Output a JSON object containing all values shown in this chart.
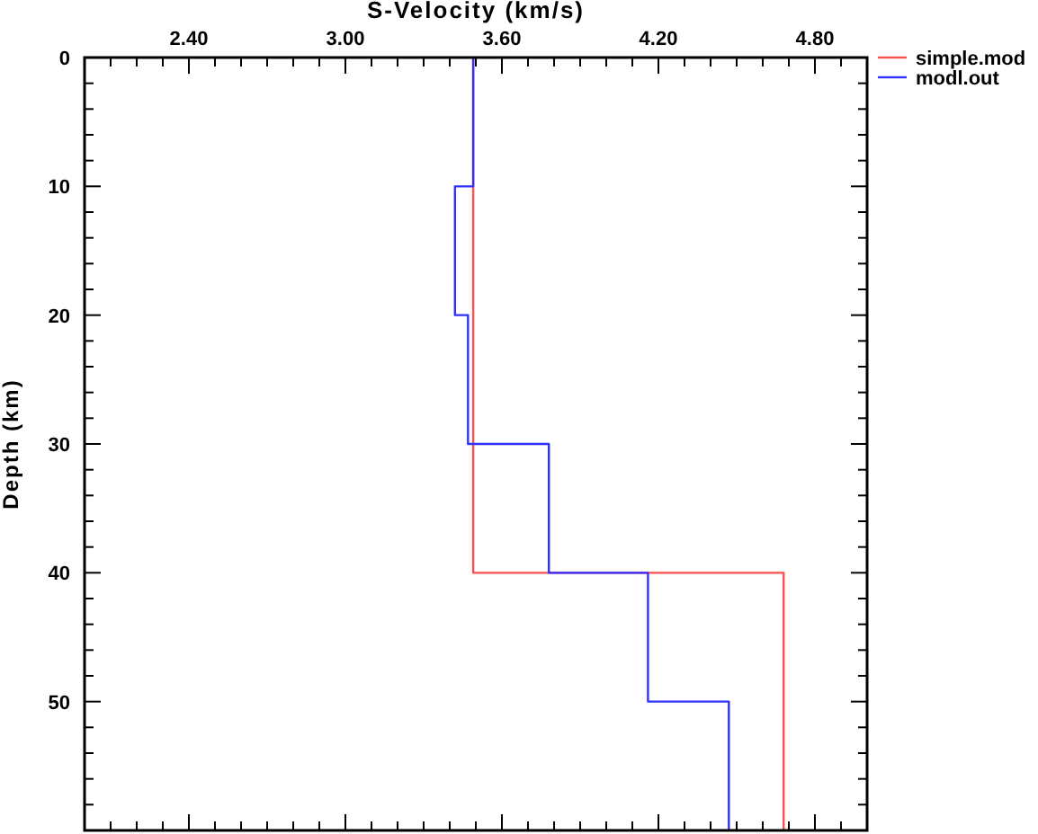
{
  "chart_data": {
    "type": "line",
    "xlabel": "S-Velocity (km/s)",
    "ylabel": "Depth (km)",
    "xlim": [
      2.0,
      5.0
    ],
    "ylim": [
      60,
      0
    ],
    "xticks": [
      {
        "value": 2.0,
        "label": null
      },
      {
        "value": 2.1,
        "label": null
      },
      {
        "value": 2.2,
        "label": null
      },
      {
        "value": 2.3,
        "label": null
      },
      {
        "value": 2.4,
        "label": "2.40"
      },
      {
        "value": 2.5,
        "label": null
      },
      {
        "value": 2.6,
        "label": null
      },
      {
        "value": 2.7,
        "label": null
      },
      {
        "value": 2.8,
        "label": null
      },
      {
        "value": 2.9,
        "label": null
      },
      {
        "value": 3.0,
        "label": "3.00"
      },
      {
        "value": 3.1,
        "label": null
      },
      {
        "value": 3.2,
        "label": null
      },
      {
        "value": 3.3,
        "label": null
      },
      {
        "value": 3.4,
        "label": null
      },
      {
        "value": 3.5,
        "label": null
      },
      {
        "value": 3.6,
        "label": "3.60"
      },
      {
        "value": 3.7,
        "label": null
      },
      {
        "value": 3.8,
        "label": null
      },
      {
        "value": 3.9,
        "label": null
      },
      {
        "value": 4.0,
        "label": null
      },
      {
        "value": 4.1,
        "label": null
      },
      {
        "value": 4.2,
        "label": "4.20"
      },
      {
        "value": 4.3,
        "label": null
      },
      {
        "value": 4.4,
        "label": null
      },
      {
        "value": 4.5,
        "label": null
      },
      {
        "value": 4.6,
        "label": null
      },
      {
        "value": 4.7,
        "label": null
      },
      {
        "value": 4.8,
        "label": "4.80"
      },
      {
        "value": 4.9,
        "label": null
      },
      {
        "value": 5.0,
        "label": null
      }
    ],
    "yticks": [
      0,
      {
        "value": 2,
        "label": null
      },
      {
        "value": 4,
        "label": null
      },
      {
        "value": 6,
        "label": null
      },
      {
        "value": 8,
        "label": null
      },
      10,
      {
        "value": 12,
        "label": null
      },
      {
        "value": 14,
        "label": null
      },
      {
        "value": 16,
        "label": null
      },
      {
        "value": 18,
        "label": null
      },
      20,
      {
        "value": 22,
        "label": null
      },
      {
        "value": 24,
        "label": null
      },
      {
        "value": 26,
        "label": null
      },
      {
        "value": 28,
        "label": null
      },
      30,
      {
        "value": 32,
        "label": null
      },
      {
        "value": 34,
        "label": null
      },
      {
        "value": 36,
        "label": null
      },
      {
        "value": 38,
        "label": null
      },
      40,
      {
        "value": 42,
        "label": null
      },
      {
        "value": 44,
        "label": null
      },
      {
        "value": 46,
        "label": null
      },
      {
        "value": 48,
        "label": null
      },
      50,
      {
        "value": 52,
        "label": null
      },
      {
        "value": 54,
        "label": null
      },
      {
        "value": 56,
        "label": null
      },
      {
        "value": 58,
        "label": null
      },
      {
        "value": 60,
        "label": null
      }
    ],
    "grid": false,
    "legend": "top right",
    "marker": "none",
    "line_style": "solid",
    "series": [
      {
        "name": "simple.mod",
        "color": "#ff5050",
        "x": [
          3.49,
          3.49,
          4.68,
          4.68
        ],
        "values": [
          0,
          40,
          40,
          60
        ]
      },
      {
        "name": "modl.out",
        "color": "#3030ff",
        "x": [
          3.49,
          3.49,
          3.42,
          3.42,
          3.47,
          3.47,
          3.78,
          3.78,
          4.16,
          4.16,
          4.47,
          4.47
        ],
        "values": [
          0,
          10,
          10,
          20,
          20,
          30,
          30,
          40,
          40,
          50,
          50,
          60
        ]
      }
    ]
  }
}
